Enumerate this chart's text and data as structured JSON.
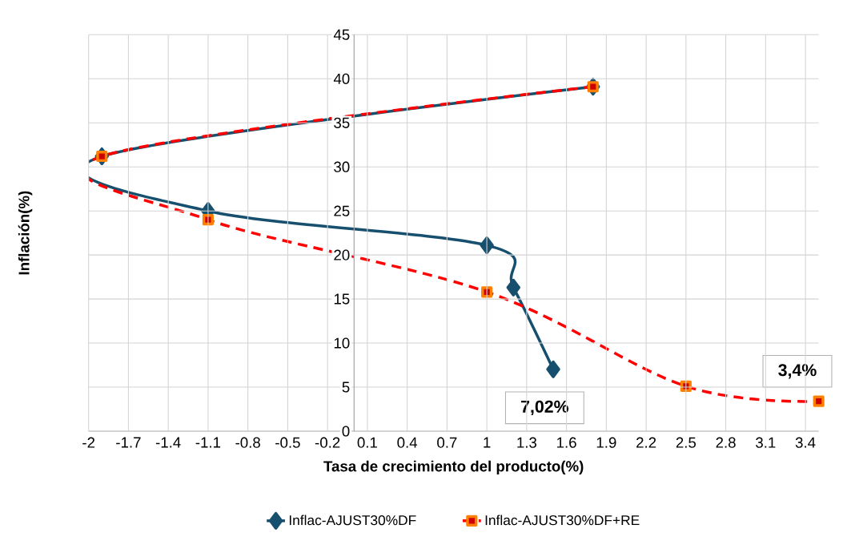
{
  "chart_data": {
    "type": "line",
    "xlabel": "Tasa de crecimiento del producto(%)",
    "ylabel": "Inflación(%)",
    "xlim": [
      -2,
      3.5
    ],
    "ylim": [
      0,
      45
    ],
    "xticks": [
      -2,
      -1.7,
      -1.4,
      -1.1,
      -0.8,
      -0.5,
      -0.2,
      0.1,
      0.4,
      0.7,
      1,
      1.3,
      1.6,
      1.9,
      2.2,
      2.5,
      2.8,
      3.1,
      3.4
    ],
    "yticks": [
      0,
      5,
      10,
      15,
      20,
      25,
      30,
      35,
      40,
      45
    ],
    "grid": true,
    "legend": "bottom",
    "series": [
      {
        "name": "Inflac-AJUST30%DF",
        "color": "#17506e",
        "marker": "diamond",
        "line_style": "solid",
        "x": [
          1.8,
          -1.9,
          -1.1,
          1,
          1.2,
          1.5
        ],
        "values": [
          39.1,
          31.2,
          25.0,
          21.1,
          16.3,
          7.02
        ]
      },
      {
        "name": "Inflac-AJUST30%DF+RE",
        "color": "#ff0000",
        "marker": "square",
        "line_style": "dashed",
        "x": [
          1.8,
          -1.9,
          -1.1,
          1,
          2.5,
          3.5
        ],
        "values": [
          39.1,
          31.2,
          24.0,
          15.8,
          5.1,
          3.4
        ]
      }
    ],
    "annotations": [
      {
        "text": "7,02%",
        "x": 1.5,
        "y": 7.02
      },
      {
        "text": "3,4%",
        "x": 3.5,
        "y": 3.4
      }
    ]
  }
}
